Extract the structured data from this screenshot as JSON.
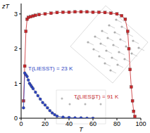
{
  "chart_data": {
    "type": "scatter",
    "x_label": "T",
    "y_label": "zT",
    "xlim": [
      0,
      100
    ],
    "ylim": [
      0,
      3.3
    ],
    "xticks": [
      0,
      20,
      40,
      60,
      80,
      100
    ],
    "yticks": [
      0,
      1,
      2,
      3
    ],
    "annotations": [
      "T(LIESST) = 23 K",
      "T(LIESST) = 91 K"
    ],
    "series": [
      {
        "name": "T(LIESST) = 91 K",
        "color": "#c8262a",
        "marker": "square",
        "x": [
          2,
          3,
          4,
          5,
          6,
          8,
          10,
          12,
          15,
          20,
          25,
          30,
          35,
          40,
          45,
          50,
          55,
          60,
          65,
          70,
          75,
          80,
          84,
          87,
          89,
          90,
          91,
          92,
          93,
          94,
          95
        ],
        "values": [
          0.5,
          1.5,
          2.5,
          2.85,
          2.9,
          2.92,
          2.94,
          2.96,
          2.98,
          3.0,
          3.02,
          3.04,
          3.05,
          3.05,
          3.06,
          3.06,
          3.06,
          3.05,
          3.05,
          3.04,
          3.02,
          3.0,
          2.95,
          2.85,
          2.5,
          2.0,
          1.4,
          0.9,
          0.5,
          0.2,
          0.05
        ]
      },
      {
        "name": "T(LIESST) = 23 K",
        "color": "#2b43c2",
        "marker": "circle",
        "x": [
          2,
          3,
          4,
          5,
          6,
          7,
          8,
          9,
          10,
          12,
          14,
          16,
          18,
          20,
          22,
          24,
          26,
          28,
          30,
          35,
          40,
          45,
          50,
          55,
          60
        ],
        "values": [
          0.3,
          1.3,
          1.25,
          1.2,
          1.1,
          1.0,
          0.95,
          0.9,
          0.85,
          0.75,
          0.65,
          0.55,
          0.45,
          0.38,
          0.3,
          0.22,
          0.15,
          0.1,
          0.06,
          0.03,
          0.02,
          0.01,
          0.01,
          0.0,
          0.0
        ]
      }
    ]
  }
}
